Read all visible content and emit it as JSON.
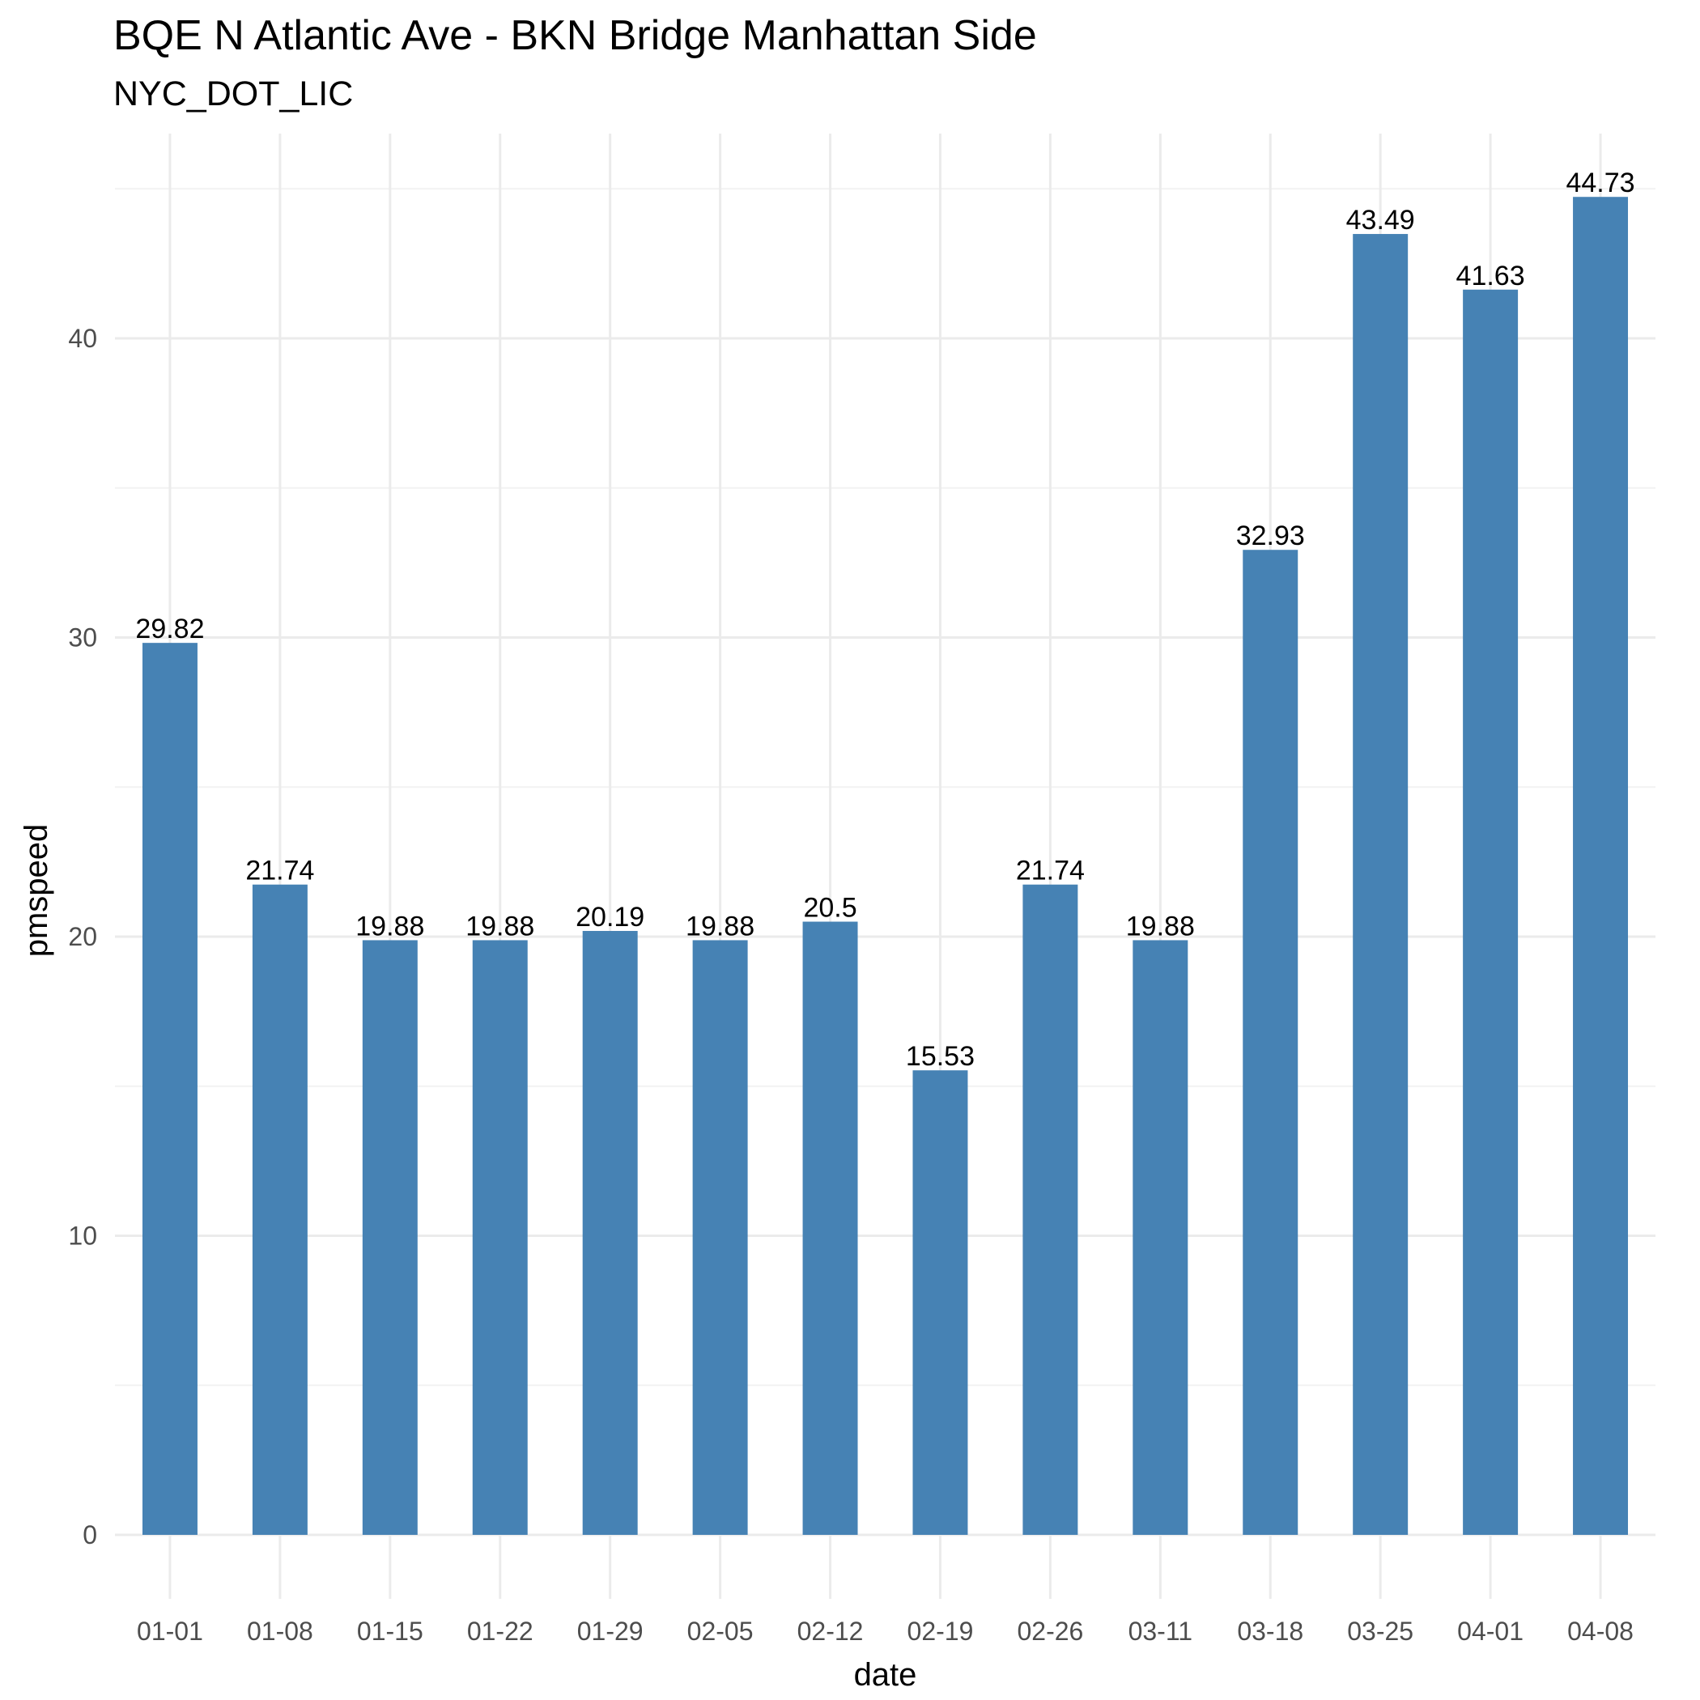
{
  "chart_data": {
    "type": "bar",
    "title": "BQE N Atlantic Ave - BKN Bridge Manhattan Side",
    "subtitle": "NYC_DOT_LIC",
    "xlabel": "date",
    "ylabel": "pmspeed",
    "categories": [
      "01-01",
      "01-08",
      "01-15",
      "01-22",
      "01-29",
      "02-05",
      "02-12",
      "02-19",
      "02-26",
      "03-11",
      "03-18",
      "03-25",
      "04-01",
      "04-08"
    ],
    "values": [
      29.82,
      21.74,
      19.88,
      19.88,
      20.19,
      19.88,
      20.5,
      15.53,
      21.74,
      19.88,
      32.93,
      43.49,
      41.63,
      44.73
    ],
    "value_labels": [
      "29.82",
      "21.74",
      "19.88",
      "19.88",
      "20.19",
      "19.88",
      "20.5",
      "15.53",
      "21.74",
      "19.88",
      "32.93",
      "43.49",
      "41.63",
      "44.73"
    ],
    "y_ticks": [
      0,
      10,
      20,
      30,
      40
    ],
    "ylim": [
      0,
      47
    ],
    "grid": true,
    "legend": "none",
    "bar_color": "#4682B4"
  }
}
